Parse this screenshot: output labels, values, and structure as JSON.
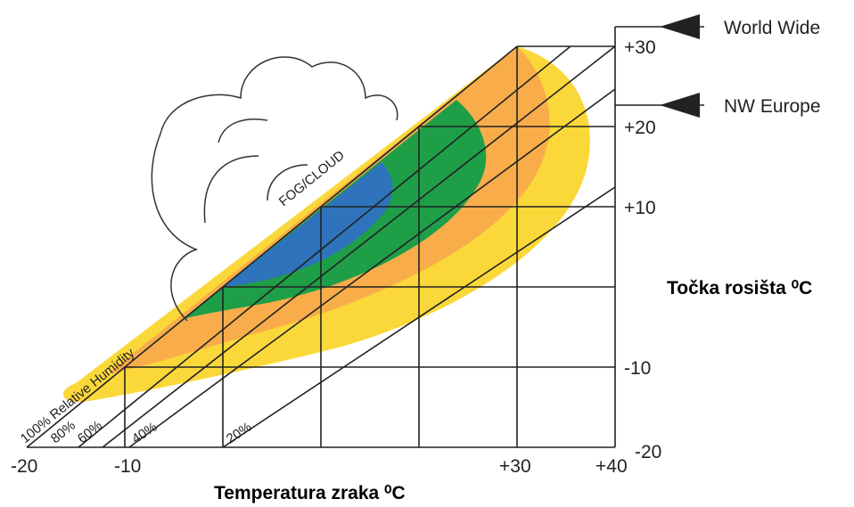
{
  "arrows": [
    {
      "label": "World Wide"
    },
    {
      "label": "NW Europe"
    }
  ],
  "dew_point_axis": {
    "title": "Točka rosišta ⁰C",
    "ticks": [
      "+30",
      "+20",
      "+10",
      "-10",
      "-20"
    ]
  },
  "temperature_axis": {
    "title": "Temperatura zraka ⁰C",
    "ticks": [
      "-20",
      "-10",
      "+30",
      "+40"
    ]
  },
  "region_label": "FOG/CLOUD",
  "humidity_lines": [
    "100% Relative Humidity",
    "80%",
    "60%",
    "40%",
    "20%"
  ]
}
